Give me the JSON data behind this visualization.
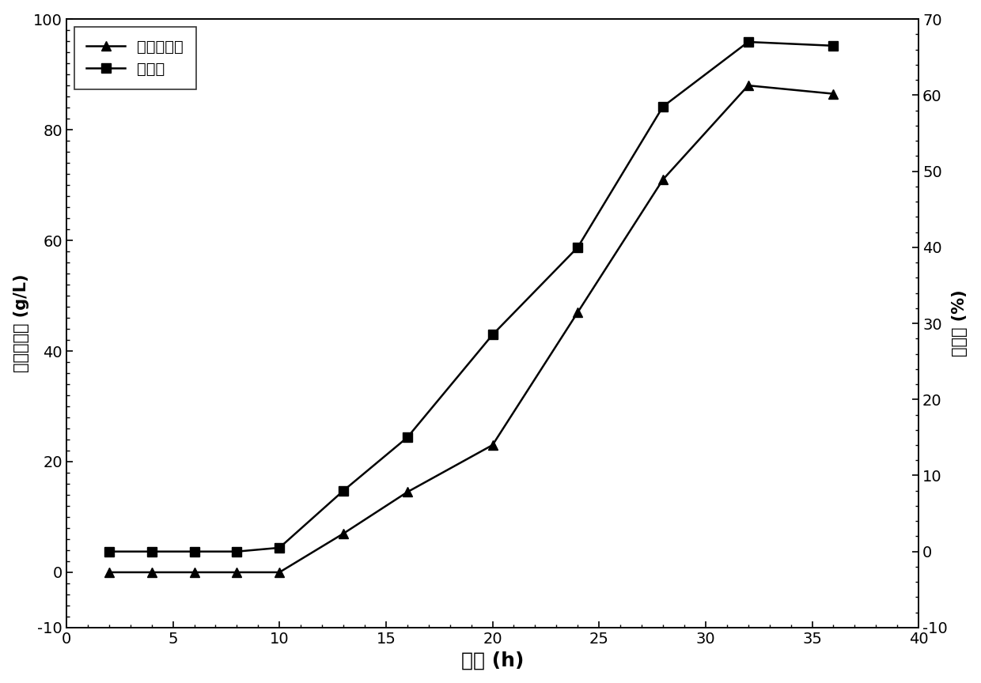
{
  "time": [
    2,
    4,
    6,
    8,
    10,
    13,
    16,
    20,
    24,
    28,
    32,
    36
  ],
  "trehalose": [
    0.0,
    0.0,
    0.0,
    0.0,
    0.0,
    7.0,
    14.5,
    23.0,
    47.0,
    71.0,
    88.0,
    86.5
  ],
  "conversion": [
    0.0,
    0.0,
    0.0,
    0.0,
    0.5,
    8.0,
    15.0,
    28.5,
    40.0,
    58.5,
    67.0,
    66.5
  ],
  "trehalose_label": "海藻糖浓度",
  "conversion_label": "转化率",
  "xlabel": "时间 (h)",
  "ylabel_left": "海藻糖浓度 (g/L)",
  "ylabel_right": "转化率 (%)",
  "xlim": [
    0,
    40
  ],
  "ylim_left": [
    -10,
    100
  ],
  "ylim_right": [
    -10,
    70
  ],
  "xticks": [
    0,
    5,
    10,
    15,
    20,
    25,
    30,
    35,
    40
  ],
  "yticks_left": [
    -10,
    0,
    20,
    40,
    60,
    80,
    100
  ],
  "yticks_right": [
    -10,
    0,
    10,
    20,
    30,
    40,
    50,
    60,
    70
  ],
  "line_color": "#000000",
  "bg_color": "#ffffff",
  "marker_trehalose": "^",
  "marker_conversion": "s",
  "marker_size": 8,
  "linewidth": 1.8
}
